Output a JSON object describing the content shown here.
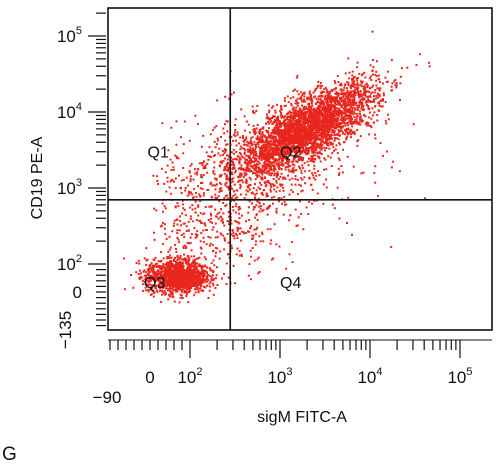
{
  "panel_letter": "G",
  "chart_data": {
    "type": "scatter",
    "title": "",
    "xlabel": "sigM FITC-A",
    "ylabel": "CD19 PE-A",
    "x_scale": "logicle",
    "y_scale": "logicle",
    "xlim": [
      -200,
      250000
    ],
    "ylim": [
      -250,
      250000
    ],
    "grid": false,
    "legend": "none",
    "point_color": "#e8261e",
    "x_ticks": [
      {
        "value": -90,
        "label": "−90"
      },
      {
        "value": 0,
        "label": "0"
      },
      {
        "value": 100,
        "label": "10",
        "exp": "2"
      },
      {
        "value": 1000,
        "label": "10",
        "exp": "3"
      },
      {
        "value": 10000,
        "label": "10",
        "exp": "4"
      },
      {
        "value": 100000,
        "label": "10",
        "exp": "5"
      }
    ],
    "y_ticks": [
      {
        "value": -135,
        "label": "−135"
      },
      {
        "value": 0,
        "label": "0"
      },
      {
        "value": 100,
        "label": "10",
        "exp": "2"
      },
      {
        "value": 1000,
        "label": "10",
        "exp": "3"
      },
      {
        "value": 10000,
        "label": "10",
        "exp": "4"
      },
      {
        "value": 100000,
        "label": "10",
        "exp": "5"
      }
    ],
    "gates": {
      "x": 280,
      "y": 700
    },
    "quadrants": [
      {
        "label": "Q1",
        "x": 55,
        "y": 3000
      },
      {
        "label": "Q2",
        "x": 1000,
        "y": 3000
      },
      {
        "label": "Q3",
        "x": 20,
        "y": 40
      },
      {
        "label": "Q4",
        "x": 1000,
        "y": 40
      }
    ],
    "populations": [
      {
        "x_center": 2000,
        "y_center": 6000,
        "x_spread_decades": 0.38,
        "y_spread_decades": 0.3,
        "correlation": 0.75,
        "count": 3200
      },
      {
        "x_center": 70,
        "y_center": 55,
        "x_spread": 40,
        "y_spread": 30,
        "count": 1300
      },
      {
        "x_center": 500,
        "y_center": 1500,
        "x_spread_decades": 0.6,
        "y_spread_decades": 0.45,
        "correlation": 0.3,
        "count": 700
      },
      {
        "x_center": 200,
        "y_center": 250,
        "x_spread_decades": 0.35,
        "y_spread_decades": 0.4,
        "correlation": 0.2,
        "count": 300
      }
    ]
  }
}
